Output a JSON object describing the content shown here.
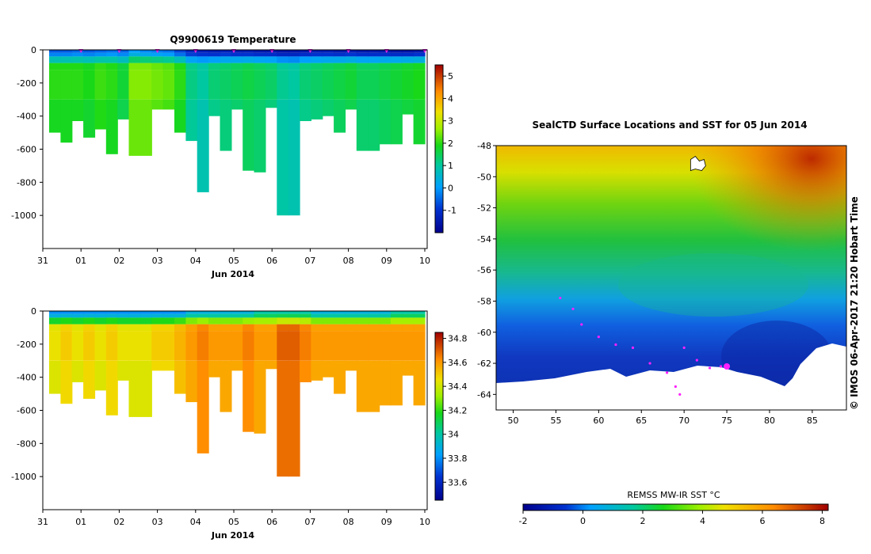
{
  "temperature_panel": {
    "title": "Q9900619  Temperature",
    "xlabel": "Jun 2014",
    "x_ticks": [
      "31",
      "01",
      "02",
      "03",
      "04",
      "05",
      "06",
      "07",
      "08",
      "09",
      "10"
    ],
    "y_ticks": [
      "0",
      "-200",
      "-400",
      "-600",
      "-800",
      "-1000"
    ],
    "colorbar_ticks": [
      "5",
      "4",
      "3",
      "2",
      "1",
      "0",
      "-1"
    ]
  },
  "salinity_panel": {
    "xlabel": "Jun 2014",
    "x_ticks": [
      "31",
      "01",
      "02",
      "03",
      "04",
      "05",
      "06",
      "07",
      "08",
      "09",
      "10"
    ],
    "y_ticks": [
      "0",
      "-200",
      "-400",
      "-600",
      "-800",
      "-1000"
    ],
    "colorbar_ticks": [
      "34.8",
      "34.6",
      "34.4",
      "34.2",
      "34",
      "33.8",
      "33.6"
    ]
  },
  "map_panel": {
    "title": "SealCTD Surface Locations and SST for 05 Jun 2014",
    "lat_ticks": [
      "-48",
      "-50",
      "-52",
      "-54",
      "-56",
      "-58",
      "-60",
      "-62",
      "-64"
    ],
    "lon_ticks": [
      "50",
      "55",
      "60",
      "65",
      "70",
      "75",
      "80",
      "85"
    ],
    "side_text": "© IMOS 06-Apr-2017 21:20 Hobart Time",
    "colorbar_title": "REMSS MW-IR SST °C",
    "colorbar_ticks": [
      "-2",
      "0",
      "2",
      "4",
      "6",
      "8"
    ]
  },
  "chart_data": [
    {
      "type": "heatmap",
      "title": "Q9900619  Temperature",
      "xlabel": "Jun 2014",
      "ylabel": "",
      "x_range_days_from_may31": [
        0,
        10
      ],
      "ylim": [
        -1200,
        0
      ],
      "colorbar_range": [
        -2,
        5.5
      ],
      "profile_time_days_from_may31": [
        0.2,
        0.4,
        0.7,
        1.0,
        1.3,
        1.6,
        1.9,
        2.2,
        2.5,
        2.8,
        3.1,
        3.4,
        3.7,
        4.0,
        4.3,
        4.6,
        4.9,
        5.2,
        5.5,
        5.8,
        6.1,
        6.4,
        6.7,
        7.0,
        7.3,
        7.6,
        7.9,
        8.2,
        8.5,
        8.8,
        9.1,
        9.4,
        9.7
      ],
      "profile_max_depth_m": [
        500,
        560,
        430,
        530,
        480,
        630,
        420,
        640,
        640,
        360,
        360,
        500,
        550,
        860,
        400,
        610,
        360,
        730,
        740,
        350,
        1000,
        1000,
        430,
        420,
        400,
        500,
        360,
        610,
        610,
        570,
        570,
        390,
        570
      ],
      "surface_layer_temp_c": [
        -0.6,
        -0.6,
        -0.5,
        -0.6,
        -0.5,
        -0.4,
        -0.5,
        0.0,
        -0.2,
        -0.3,
        -0.4,
        -0.8,
        -1.2,
        -1.3,
        -1.4,
        -1.3,
        -1.4,
        -1.4,
        -1.5,
        -1.5,
        -1.6,
        -1.6,
        -1.5,
        -1.4,
        -1.4,
        -1.5,
        -1.4,
        -1.5,
        -1.5,
        -1.5,
        -1.6,
        -1.6,
        -1.5
      ],
      "deep_layer_temp_c": [
        2.0,
        2.0,
        2.0,
        1.9,
        2.1,
        2.0,
        1.7,
        2.5,
        2.5,
        2.4,
        2.3,
        2.0,
        1.2,
        1.0,
        1.3,
        1.4,
        1.5,
        1.6,
        1.5,
        1.4,
        1.1,
        1.0,
        1.3,
        1.4,
        1.5,
        1.6,
        1.7,
        1.5,
        1.5,
        1.6,
        1.7,
        1.8,
        1.9
      ],
      "profile_markers": [
        "01",
        "02",
        "03",
        "04",
        "05",
        "06",
        "07",
        "08",
        "09",
        "10"
      ]
    },
    {
      "type": "heatmap",
      "title": "",
      "xlabel": "Jun 2014",
      "ylabel": "",
      "x_range_days_from_may31": [
        0,
        10
      ],
      "ylim": [
        -1200,
        0
      ],
      "colorbar_range": [
        33.45,
        34.85
      ],
      "surface_layer_salinity": [
        33.8,
        33.8,
        33.8,
        33.8,
        33.8,
        33.8,
        33.8,
        33.8,
        33.8,
        33.8,
        33.8,
        33.8,
        33.9,
        33.9,
        33.9,
        33.9,
        33.9,
        33.9,
        34.0,
        34.0,
        34.0,
        34.0,
        34.0,
        33.9,
        33.9,
        33.9,
        33.9,
        33.9,
        33.9,
        33.9,
        34.0,
        34.0,
        34.0
      ],
      "deep_layer_salinity": [
        34.45,
        34.5,
        34.45,
        34.5,
        34.45,
        34.5,
        34.45,
        34.45,
        34.45,
        34.5,
        34.5,
        34.55,
        34.6,
        34.65,
        34.6,
        34.6,
        34.6,
        34.65,
        34.6,
        34.6,
        34.7,
        34.7,
        34.65,
        34.6,
        34.6,
        34.6,
        34.6,
        34.6,
        34.6,
        34.6,
        34.6,
        34.6,
        34.6
      ]
    },
    {
      "type": "heatmap",
      "title": "SealCTD Surface Locations and SST for 05 Jun 2014",
      "xlabel": "",
      "ylabel": "",
      "xlim": [
        48,
        89
      ],
      "ylim": [
        -65,
        -48
      ],
      "sst_colorbar_range": [
        -2,
        8.2
      ],
      "sst_by_latitude_c": [
        {
          "lat": -48,
          "sst": 5.0
        },
        {
          "lat": -50,
          "sst": 4.2
        },
        {
          "lat": -52,
          "sst": 3.4
        },
        {
          "lat": -54,
          "sst": 2.6
        },
        {
          "lat": -56,
          "sst": 2.2
        },
        {
          "lat": -58,
          "sst": 1.3
        },
        {
          "lat": -60,
          "sst": 0.0
        },
        {
          "lat": -62,
          "sst": -0.8
        },
        {
          "lat": -64,
          "sst": -1.4
        }
      ],
      "track_points": [
        {
          "lon": 55.5,
          "lat": -57.8
        },
        {
          "lon": 57.0,
          "lat": -58.5
        },
        {
          "lon": 58.0,
          "lat": -59.5
        },
        {
          "lon": 60.0,
          "lat": -60.3
        },
        {
          "lon": 62.0,
          "lat": -60.8
        },
        {
          "lon": 64.0,
          "lat": -61.0
        },
        {
          "lon": 66.0,
          "lat": -62.0
        },
        {
          "lon": 68.0,
          "lat": -62.6
        },
        {
          "lon": 69.0,
          "lat": -63.5
        },
        {
          "lon": 69.5,
          "lat": -64.0
        },
        {
          "lon": 70.0,
          "lat": -61.0
        },
        {
          "lon": 71.5,
          "lat": -61.8
        },
        {
          "lon": 73.0,
          "lat": -62.3
        },
        {
          "lon": 74.3,
          "lat": -62.2
        }
      ],
      "current_location": {
        "lon": 75.0,
        "lat": -62.2
      },
      "small_island": {
        "lon": 71.5,
        "lat": -49.3
      }
    }
  ]
}
